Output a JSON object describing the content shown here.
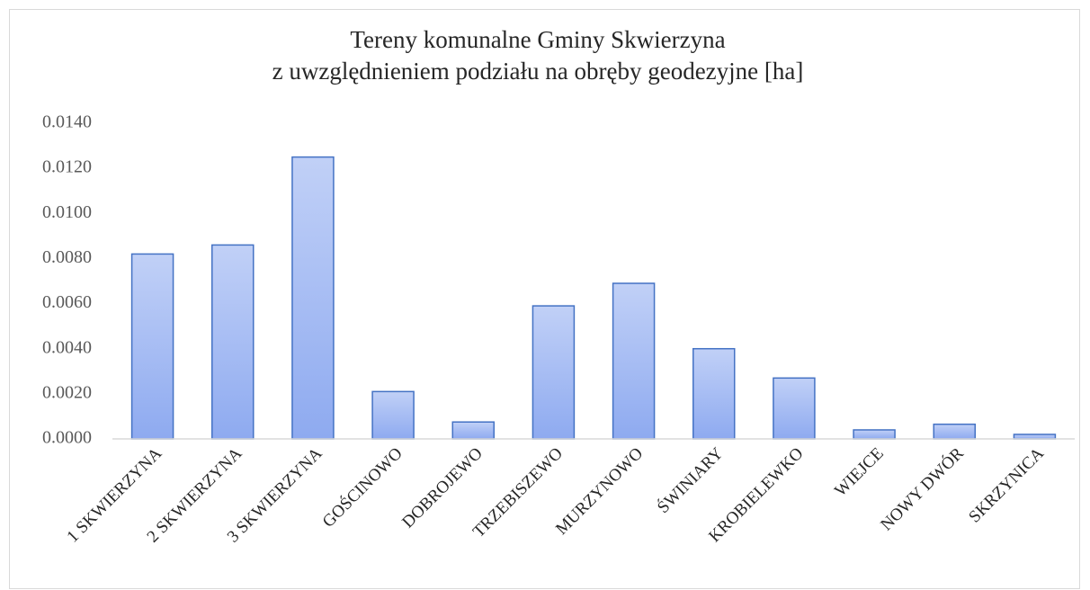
{
  "chart_data": {
    "type": "bar",
    "title": [
      "Tereny komunalne Gminy Skwierzyna",
      "z uwzględnieniem podziału na obręby geodezyjne [ha]"
    ],
    "categories": [
      "1 SKWIERZYNA",
      "2 SKWIERZYNA",
      "3 SKWIERZYNA",
      "GOŚCINOWO",
      "DOBROJEWO",
      "TRZEBISZEWO",
      "MURZYNOWO",
      "ŚWINIARY",
      "KROBIELEWKO",
      "WIEJCE",
      "NOWY DWÓR",
      "SKRZYNICA"
    ],
    "values": [
      0.0082,
      0.0086,
      0.0125,
      0.0021,
      0.00075,
      0.0059,
      0.0069,
      0.004,
      0.0027,
      0.0004,
      0.00065,
      0.0002
    ],
    "color": "#8eaaf0",
    "ylim": [
      0,
      0.014
    ],
    "yticks": [
      {
        "value": 0,
        "label": "0.0000"
      },
      {
        "value": 0.002,
        "label": "0.0020"
      },
      {
        "value": 0.004,
        "label": "0.0040"
      },
      {
        "value": 0.006,
        "label": "0.0060"
      },
      {
        "value": 0.008,
        "label": "0.0080"
      },
      {
        "value": 0.01,
        "label": "0.0100"
      },
      {
        "value": 0.012,
        "label": "0.0120"
      },
      {
        "value": 0.014,
        "label": "0.0140"
      }
    ],
    "grid": false
  }
}
